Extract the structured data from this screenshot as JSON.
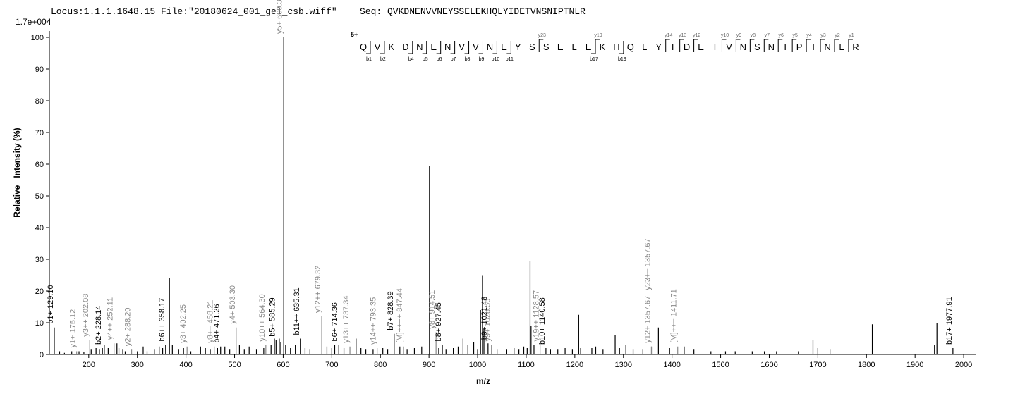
{
  "chart_data": {
    "type": "spectrum",
    "title": "Locus:1.1.1.1648.15 File:\"20180624_001_gel_csb.wiff\"",
    "sequence_label": "Seq: QVKDNENVVNEYSSELEKHQLYIDETVNSNIPTNLR",
    "scale_label": "1.7e+004",
    "y_label": "Relative   Intensity (%)",
    "x_label": "m/z",
    "xlim": [
      119,
      2026
    ],
    "ylim": [
      0,
      102
    ],
    "xticks": [
      200,
      300,
      400,
      500,
      600,
      700,
      800,
      900,
      1000,
      1100,
      1200,
      1300,
      1400,
      1500,
      1600,
      1700,
      1800,
      1900,
      2000
    ],
    "yticks": [
      0,
      10,
      20,
      30,
      40,
      50,
      60,
      70,
      80,
      90,
      100
    ],
    "peak_color": "#000000",
    "peptide": {
      "charge": "5+",
      "residues": [
        "Q",
        "V",
        "K",
        "D",
        "N",
        "E",
        "N",
        "V",
        "V",
        "N",
        "E",
        "Y",
        "S",
        "S",
        "E",
        "L",
        "E",
        "K",
        "H",
        "Q",
        "L",
        "Y",
        "I",
        "D",
        "E",
        "T",
        "V",
        "N",
        "S",
        "N",
        "I",
        "P",
        "T",
        "N",
        "L",
        "R"
      ],
      "b_ions": [
        "b1",
        "b2",
        "b4",
        "b5",
        "b6",
        "b7",
        "b8",
        "b9",
        "b10",
        "b11",
        "b17",
        "b19"
      ],
      "y_ions": [
        "y23",
        "y19",
        "y14",
        "y13",
        "y12",
        "y10",
        "y9",
        "y8",
        "y7",
        "y6",
        "y5",
        "y4",
        "y3",
        "y2",
        "y1"
      ]
    },
    "peaks": {
      "mz": [
        140,
        150,
        165,
        180,
        190,
        205,
        215,
        222,
        232,
        240,
        258,
        262,
        270,
        275,
        300,
        312,
        320,
        335,
        345,
        352,
        366,
        372,
        385,
        395,
        410,
        430,
        440,
        450,
        465,
        480,
        490,
        510,
        520,
        530,
        545,
        560,
        575,
        582,
        592,
        595,
        605,
        615,
        625,
        645,
        655,
        690,
        700,
        706,
        725,
        750,
        760,
        770,
        785,
        805,
        815,
        840,
        855,
        870,
        885,
        901,
        920,
        935,
        950,
        960,
        970,
        980,
        992,
        1000,
        1006,
        1010,
        1013,
        1040,
        1060,
        1075,
        1085,
        1095,
        1102,
        1108,
        1110,
        1116,
        1150,
        1165,
        1180,
        1195,
        1208,
        1212,
        1235,
        1243,
        1258,
        1283,
        1292,
        1305,
        1320,
        1340,
        1372,
        1395,
        1425,
        1445,
        1480,
        1510,
        1530,
        1565,
        1590,
        1615,
        1660,
        1690,
        1700,
        1725,
        1812,
        1940,
        1945
      ],
      "intensity": [
        1,
        0.5,
        1,
        1,
        0.8,
        1.5,
        2,
        1.5,
        3,
        2,
        3.5,
        2,
        1.5,
        1,
        1,
        2.5,
        1,
        1.5,
        2.5,
        2,
        24,
        3,
        1.5,
        2,
        1,
        2.5,
        2,
        1.5,
        2,
        2.5,
        1.5,
        3,
        1.5,
        2.5,
        1.5,
        2,
        3,
        5,
        5,
        4,
        3,
        2,
        3,
        2,
        1.5,
        2.5,
        2,
        3,
        2,
        5,
        2,
        1.5,
        1.5,
        2,
        1.5,
        2.5,
        1.5,
        2,
        2.5,
        59.5,
        2,
        1.5,
        2,
        2.5,
        5,
        3,
        4,
        1.5,
        14,
        25,
        8,
        1.5,
        1.5,
        2,
        1.5,
        2.5,
        2,
        29.5,
        9,
        3,
        1.5,
        1.5,
        2,
        1.5,
        12.5,
        2,
        2,
        2.5,
        1.5,
        6,
        2,
        3,
        1.5,
        1.5,
        8.5,
        2,
        2.5,
        1.5,
        1,
        1,
        1,
        1,
        1,
        1,
        1,
        4.5,
        2,
        1.5,
        9.5,
        3,
        10
      ]
    },
    "annotations": [
      {
        "label": "b1+ 129.10",
        "mz": 129.1,
        "intensity": 8.5,
        "color": "#000000"
      },
      {
        "label": "y1+ 175.12",
        "mz": 175.12,
        "intensity": 1,
        "color": "#888888"
      },
      {
        "label": "y3++ 202.08",
        "mz": 202.08,
        "intensity": 4.5,
        "color": "#888888"
      },
      {
        "label": "b2+ 228.14",
        "mz": 228.14,
        "intensity": 2,
        "color": "#000000"
      },
      {
        "label": "y4++ 252.11",
        "mz": 252.11,
        "intensity": 3.5,
        "color": "#888888"
      },
      {
        "label": "y2+ 288.20",
        "mz": 288.2,
        "intensity": 1.5,
        "color": "#888888"
      },
      {
        "label": "b6++ 358.17",
        "mz": 358.17,
        "intensity": 3,
        "color": "#000000"
      },
      {
        "label": "y3+ 402.25",
        "mz": 402.25,
        "intensity": 2.5,
        "color": "#888888"
      },
      {
        "label": "y8++ 458.21",
        "mz": 458.21,
        "intensity": 2.5,
        "color": "#888888"
      },
      {
        "label": "b4+ 471.26",
        "mz": 471.26,
        "intensity": 2.5,
        "color": "#000000"
      },
      {
        "label": "y4+ 503.30",
        "mz": 503.3,
        "intensity": 8.5,
        "color": "#888888"
      },
      {
        "label": "y10++ 564.30",
        "mz": 564.3,
        "intensity": 3,
        "color": "#888888"
      },
      {
        "label": "b5+ 585.29",
        "mz": 585.29,
        "intensity": 4.5,
        "color": "#000000"
      },
      {
        "label": "y5+ 600.38",
        "mz": 600.38,
        "intensity": 100,
        "color": "#888888"
      },
      {
        "label": "b11++ 635.31",
        "mz": 635.31,
        "intensity": 5,
        "color": "#000000"
      },
      {
        "label": "y12++ 679.32",
        "mz": 679.32,
        "intensity": 12,
        "color": "#888888"
      },
      {
        "label": "b6+ 714.36",
        "mz": 714.36,
        "intensity": 3,
        "color": "#000000"
      },
      {
        "label": "y13++ 737.34",
        "mz": 737.34,
        "intensity": 2.5,
        "color": "#888888"
      },
      {
        "label": "y14++ 793.35",
        "mz": 793.35,
        "intensity": 2,
        "color": "#888888"
      },
      {
        "label": "b7+ 828.39",
        "mz": 828.39,
        "intensity": 6.5,
        "color": "#000000"
      },
      {
        "label": "[M]++++ 847.44",
        "mz": 847.44,
        "intensity": 2.5,
        "color": "#888888"
      },
      {
        "label": "y8+ 914.51",
        "mz": 914.51,
        "intensity": 7,
        "color": "#888888"
      },
      {
        "label": "b8+ 927.45",
        "mz": 927.45,
        "intensity": 3,
        "color": "#000000"
      },
      {
        "label": "b9+ 1021.48",
        "mz": 1021.48,
        "intensity": 3.5,
        "color": "#000000"
      },
      {
        "label": "y9+ 1028.56",
        "mz": 1028.56,
        "intensity": 3,
        "color": "#888888"
      },
      {
        "label": "y19++ 1128.57",
        "mz": 1128.57,
        "intensity": 3,
        "color": "#888888"
      },
      {
        "label": "b10+ 1140.58",
        "mz": 1140.58,
        "intensity": 2,
        "color": "#000000"
      },
      {
        "label": "y12+ 1357.67",
        "mz": 1357.67,
        "intensity": 2.5,
        "color": "#888888"
      },
      {
        "label": "y23++ 1357.67",
        "mz": 1357.67,
        "intensity": 2.5,
        "color": "#888888"
      },
      {
        "label": "[M]+++ 1411.71",
        "mz": 1411.71,
        "intensity": 2.5,
        "color": "#888888"
      },
      {
        "label": "b17+ 1977.91",
        "mz": 1977.91,
        "intensity": 2,
        "color": "#000000"
      }
    ]
  }
}
